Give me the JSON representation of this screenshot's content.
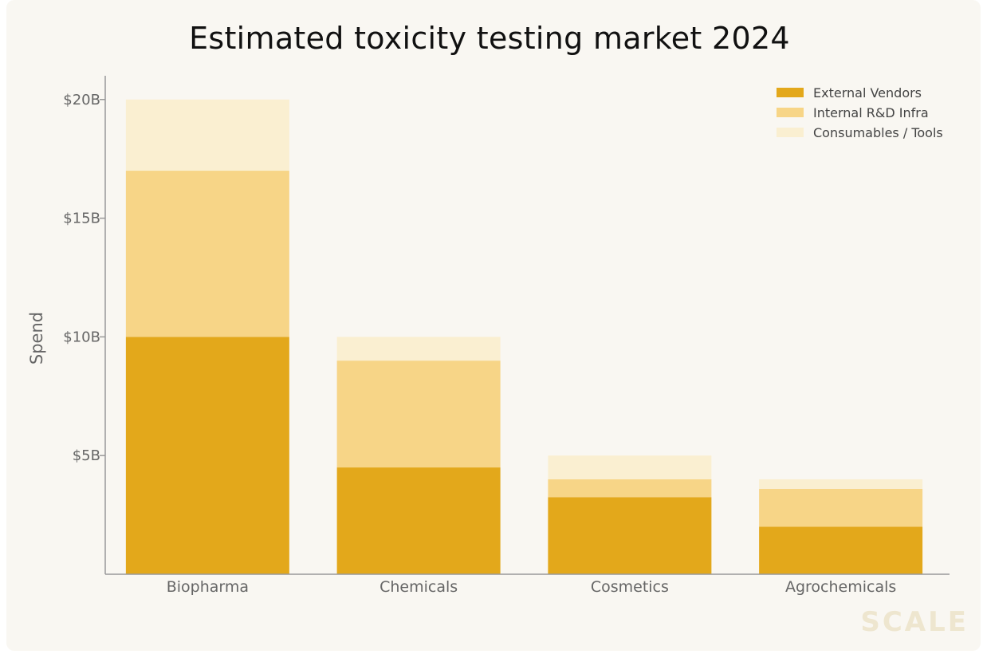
{
  "chart_data": {
    "type": "bar",
    "stacked": true,
    "title": "Estimated toxicity testing market 2024",
    "xlabel": "",
    "ylabel": "Spend",
    "categories": [
      "Biopharma",
      "Chemicals",
      "Cosmetics",
      "Agrochemicals"
    ],
    "series": [
      {
        "name": "External Vendors",
        "values": [
          10,
          4.5,
          3.25,
          2.0
        ],
        "color": "#e3a81b"
      },
      {
        "name": "Internal R&D Infra",
        "values": [
          7,
          4.5,
          0.75,
          1.6
        ],
        "color": "#f7d587"
      },
      {
        "name": "Consumables / Tools",
        "values": [
          3,
          1.0,
          1.0,
          0.4
        ],
        "color": "#faefd1"
      }
    ],
    "ylim": [
      0,
      21
    ],
    "yticks": [
      5,
      10,
      15,
      20
    ],
    "ytick_labels": [
      "$5B",
      "$10B",
      "$15B",
      "$20B"
    ],
    "grid": false,
    "legend_position": "top-right"
  },
  "watermark": "SCALE"
}
